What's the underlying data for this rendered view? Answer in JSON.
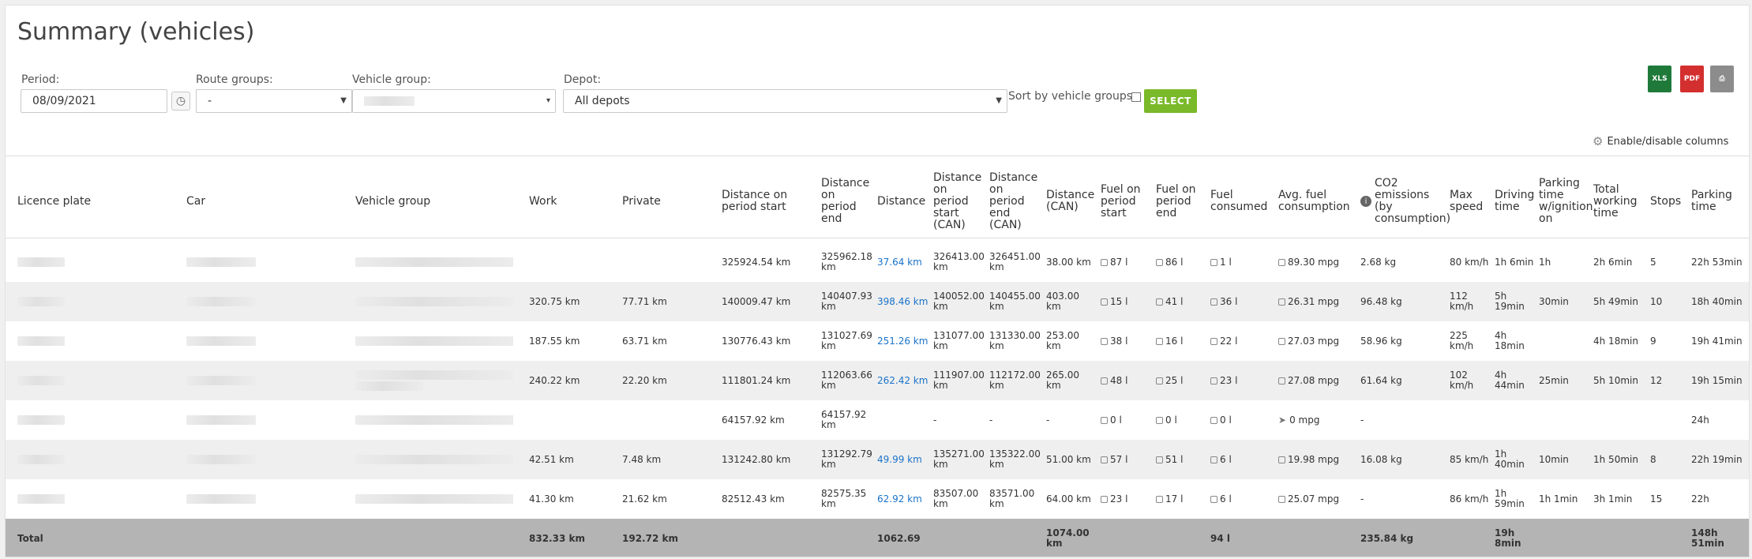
{
  "page": {
    "title": "Summary (vehicles)"
  },
  "filters": {
    "period_label": "Period:",
    "period_value": "08/09/2021",
    "route_groups_label": "Route groups:",
    "route_groups_value": "-",
    "vehicle_group_label": "Vehicle group:",
    "depot_label": "Depot:",
    "depot_value": "All depots",
    "sort_label": "Sort by vehicle groups:",
    "select_label": "SELECT"
  },
  "toolbar": {
    "enable_columns_label": "Enable/disable columns"
  },
  "columns": [
    "Licence plate",
    "Car",
    "Vehicle group",
    "Work",
    "Private",
    "Distance on period start",
    "Distance on period end",
    "Distance",
    "Distance on period start (CAN)",
    "Distance on period end (CAN)",
    "Distance (CAN)",
    "Fuel on period start",
    "Fuel on period end",
    "Fuel consumed",
    "Avg. fuel consumption",
    "CO2 emissions (by consumption)",
    "Max speed",
    "Driving time",
    "Parking time w/ignition on",
    "Total working time",
    "Stops",
    "Parking time"
  ],
  "rows": [
    [
      "",
      "",
      "",
      "",
      "",
      "325924.54 km",
      "325962.18 km",
      "37.64 km",
      "326413.00 km",
      "326451.00 km",
      "38.00 km",
      "87 l",
      "86 l",
      "1 l",
      "89.30 mpg",
      "2.68 kg",
      "80 km/h",
      "1h 6min",
      "1h",
      "2h 6min",
      "5",
      "22h 53min"
    ],
    [
      "",
      "",
      "",
      "320.75 km",
      "77.71 km",
      "140009.47 km",
      "140407.93 km",
      "398.46 km",
      "140052.00 km",
      "140455.00 km",
      "403.00 km",
      "15 l",
      "41 l",
      "36 l",
      "26.31 mpg",
      "96.48 kg",
      "112 km/h",
      "5h 19min",
      "30min",
      "5h 49min",
      "10",
      "18h 40min"
    ],
    [
      "",
      "",
      "",
      "187.55 km",
      "63.71 km",
      "130776.43 km",
      "131027.69 km",
      "251.26 km",
      "131077.00 km",
      "131330.00 km",
      "253.00 km",
      "38 l",
      "16 l",
      "22 l",
      "27.03 mpg",
      "58.96 kg",
      "225 km/h",
      "4h 18min",
      "",
      "4h 18min",
      "9",
      "19h 41min"
    ],
    [
      "",
      "",
      "",
      "240.22 km",
      "22.20 km",
      "111801.24 km",
      "112063.66 km",
      "262.42 km",
      "111907.00 km",
      "112172.00 km",
      "265.00 km",
      "48 l",
      "25 l",
      "23 l",
      "27.08 mpg",
      "61.64 kg",
      "102 km/h",
      "4h 44min",
      "25min",
      "5h 10min",
      "12",
      "19h 15min"
    ],
    [
      "",
      "",
      "",
      "",
      "",
      "64157.92 km",
      "64157.92 km",
      "",
      "-",
      "-",
      "-",
      "0 l",
      "0 l",
      "0 l",
      "0 mpg",
      "-",
      "",
      "",
      "",
      "",
      "",
      "24h"
    ],
    [
      "",
      "",
      "",
      "42.51 km",
      "7.48 km",
      "131242.80 km",
      "131292.79 km",
      "49.99 km",
      "135271.00 km",
      "135322.00 km",
      "51.00 km",
      "57 l",
      "51 l",
      "6 l",
      "19.98 mpg",
      "16.08 kg",
      "85 km/h",
      "1h 40min",
      "10min",
      "1h 50min",
      "8",
      "22h 19min"
    ],
    [
      "",
      "",
      "",
      "41.30 km",
      "21.62 km",
      "82512.43 km",
      "82575.35 km",
      "62.92 km",
      "83507.00 km",
      "83571.00 km",
      "64.00 km",
      "23 l",
      "17 l",
      "6 l",
      "25.07 mpg",
      "-",
      "86 km/h",
      "1h 59min",
      "1h 1min",
      "3h 1min",
      "15",
      "22h"
    ]
  ],
  "total": {
    "label": "Total",
    "work": "832.33 km",
    "private": "192.72 km",
    "distance": "1062.69",
    "distance_can": "1074.00 km",
    "fuel_consumed": "94 l",
    "co2": "235.84 kg",
    "driving_time": "19h 8min",
    "parking_time": "148h 51min"
  },
  "icons": {
    "clock": "clock-icon",
    "excel": "excel-icon",
    "pdf": "pdf-icon",
    "print": "printer-icon",
    "gear": "gear-icon",
    "fuel": "fuel-icon",
    "info": "info-icon",
    "navigation": "navigation-arrow-icon"
  },
  "colors": {
    "accent_green": "#7ab929",
    "link_blue": "#1a73c9",
    "total_row_bg": "#b4b4b4",
    "alt_row_bg": "#efefef"
  }
}
